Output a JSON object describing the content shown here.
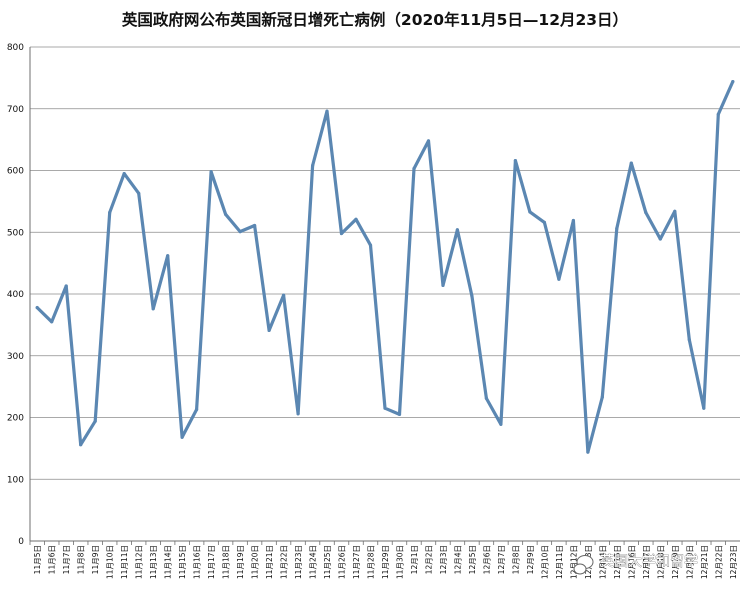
{
  "chart_data": {
    "type": "line",
    "title": "英国政府网公布英国新冠日增死亡病例（2020年11月5日—12月23日）",
    "xlabel": "",
    "ylabel": "",
    "ylim": [
      0,
      800
    ],
    "yticks": [
      "0",
      "100",
      "200",
      "300",
      "400",
      "500",
      "600",
      "700",
      "800"
    ],
    "grid": true,
    "legend": "none",
    "line_color": "#5b87b2",
    "categories": [
      "11月5日",
      "11月6日",
      "11月7日",
      "11月8日",
      "11月9日",
      "11月10日",
      "11月11日",
      "11月12日",
      "11月13日",
      "11月14日",
      "11月15日",
      "11月16日",
      "11月17日",
      "11月18日",
      "11月19日",
      "11月20日",
      "11月21日",
      "11月22日",
      "11月23日",
      "11月24日",
      "11月25日",
      "11月26日",
      "11月27日",
      "11月28日",
      "11月29日",
      "11月30日",
      "12月1日",
      "12月2日",
      "12月3日",
      "12月4日",
      "12月5日",
      "12月6日",
      "12月7日",
      "12月8日",
      "12月9日",
      "12月10日",
      "12月11日",
      "12月12日",
      "12月13日",
      "12月14日",
      "12月15日",
      "12月16日",
      "12月17日",
      "12月18日",
      "12月19日",
      "12月20日",
      "12月21日",
      "12月22日",
      "12月23日"
    ],
    "values": [
      378,
      355,
      413,
      156,
      194,
      532,
      595,
      563,
      376,
      462,
      168,
      213,
      598,
      529,
      501,
      511,
      341,
      398,
      206,
      608,
      696,
      498,
      521,
      479,
      215,
      205,
      603,
      648,
      414,
      504,
      397,
      231,
      189,
      616,
      533,
      516,
      424,
      519,
      144,
      233,
      506,
      612,
      532,
      489,
      534,
      326,
      215,
      691,
      744
    ]
  },
  "watermark": "英国大学和留学"
}
